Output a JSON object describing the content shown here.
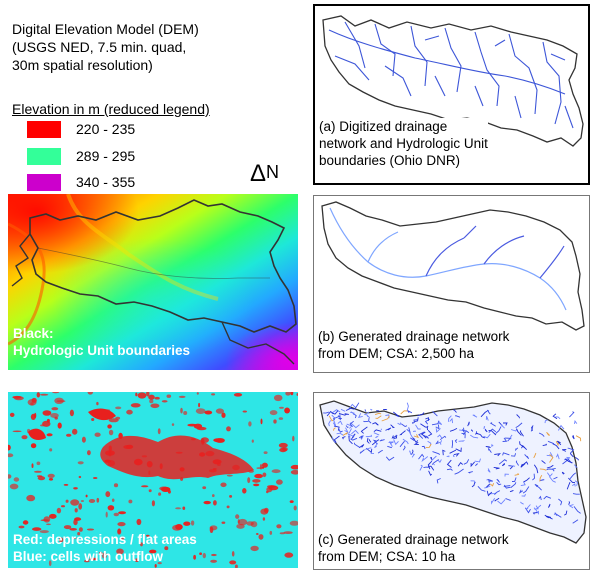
{
  "header": {
    "title_lines": [
      "Digital Elevation Model (DEM)",
      "(USGS NED, 7.5 min. quad,",
      "30m spatial resolution)"
    ]
  },
  "legend": {
    "title": "Elevation in m (reduced legend)",
    "items": [
      {
        "label": "220 - 235",
        "color": "#ff0000"
      },
      {
        "label": "289 - 295",
        "color": "#33ff99"
      },
      {
        "label": "340 - 355",
        "color": "#cc00cc"
      }
    ]
  },
  "north_arrow": {
    "symbol": "Δ",
    "letter": "N"
  },
  "dem_map": {
    "caption_lines": [
      "Black:",
      "Hydrologic Unit boundaries"
    ]
  },
  "flow_map": {
    "caption_lines": [
      "Red:  depressions / flat areas",
      "Blue: cells with outflow"
    ],
    "colors": {
      "depression": "#e8201e",
      "outflow": "#2ee6e6"
    }
  },
  "panel_a": {
    "caption_lines": [
      "(a) Digitized drainage",
      "network and Hydrologic Unit",
      "boundaries (Ohio DNR)"
    ]
  },
  "panel_b": {
    "caption_lines": [
      "(b) Generated drainage network",
      "from DEM;  CSA: 2,500 ha"
    ]
  },
  "panel_c": {
    "caption_lines": [
      "(c) Generated drainage network",
      "from DEM;  CSA: 10 ha"
    ]
  }
}
